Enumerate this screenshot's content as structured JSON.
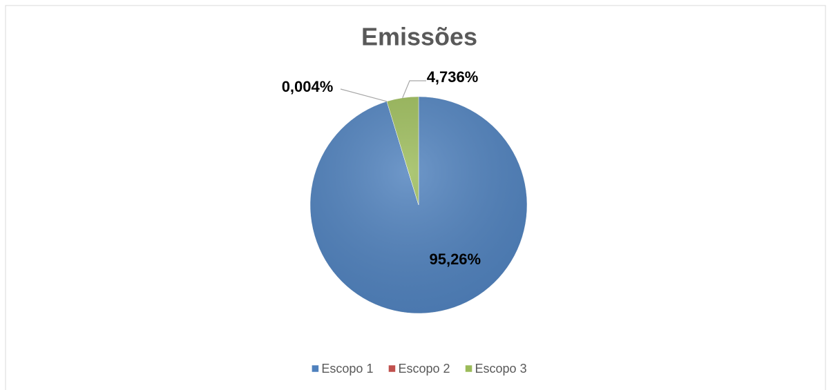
{
  "chart_data": {
    "type": "pie",
    "title": "Emissões",
    "categories": [
      "Escopo 1",
      "Escopo 2",
      "Escopo 3"
    ],
    "values": [
      95.26,
      0.004,
      4.736
    ],
    "value_labels": [
      "95,26%",
      "0,004%",
      "4,736%"
    ],
    "colors": [
      "#4f81bd",
      "#c0504d",
      "#9bbb59"
    ],
    "legend": "bottom"
  }
}
